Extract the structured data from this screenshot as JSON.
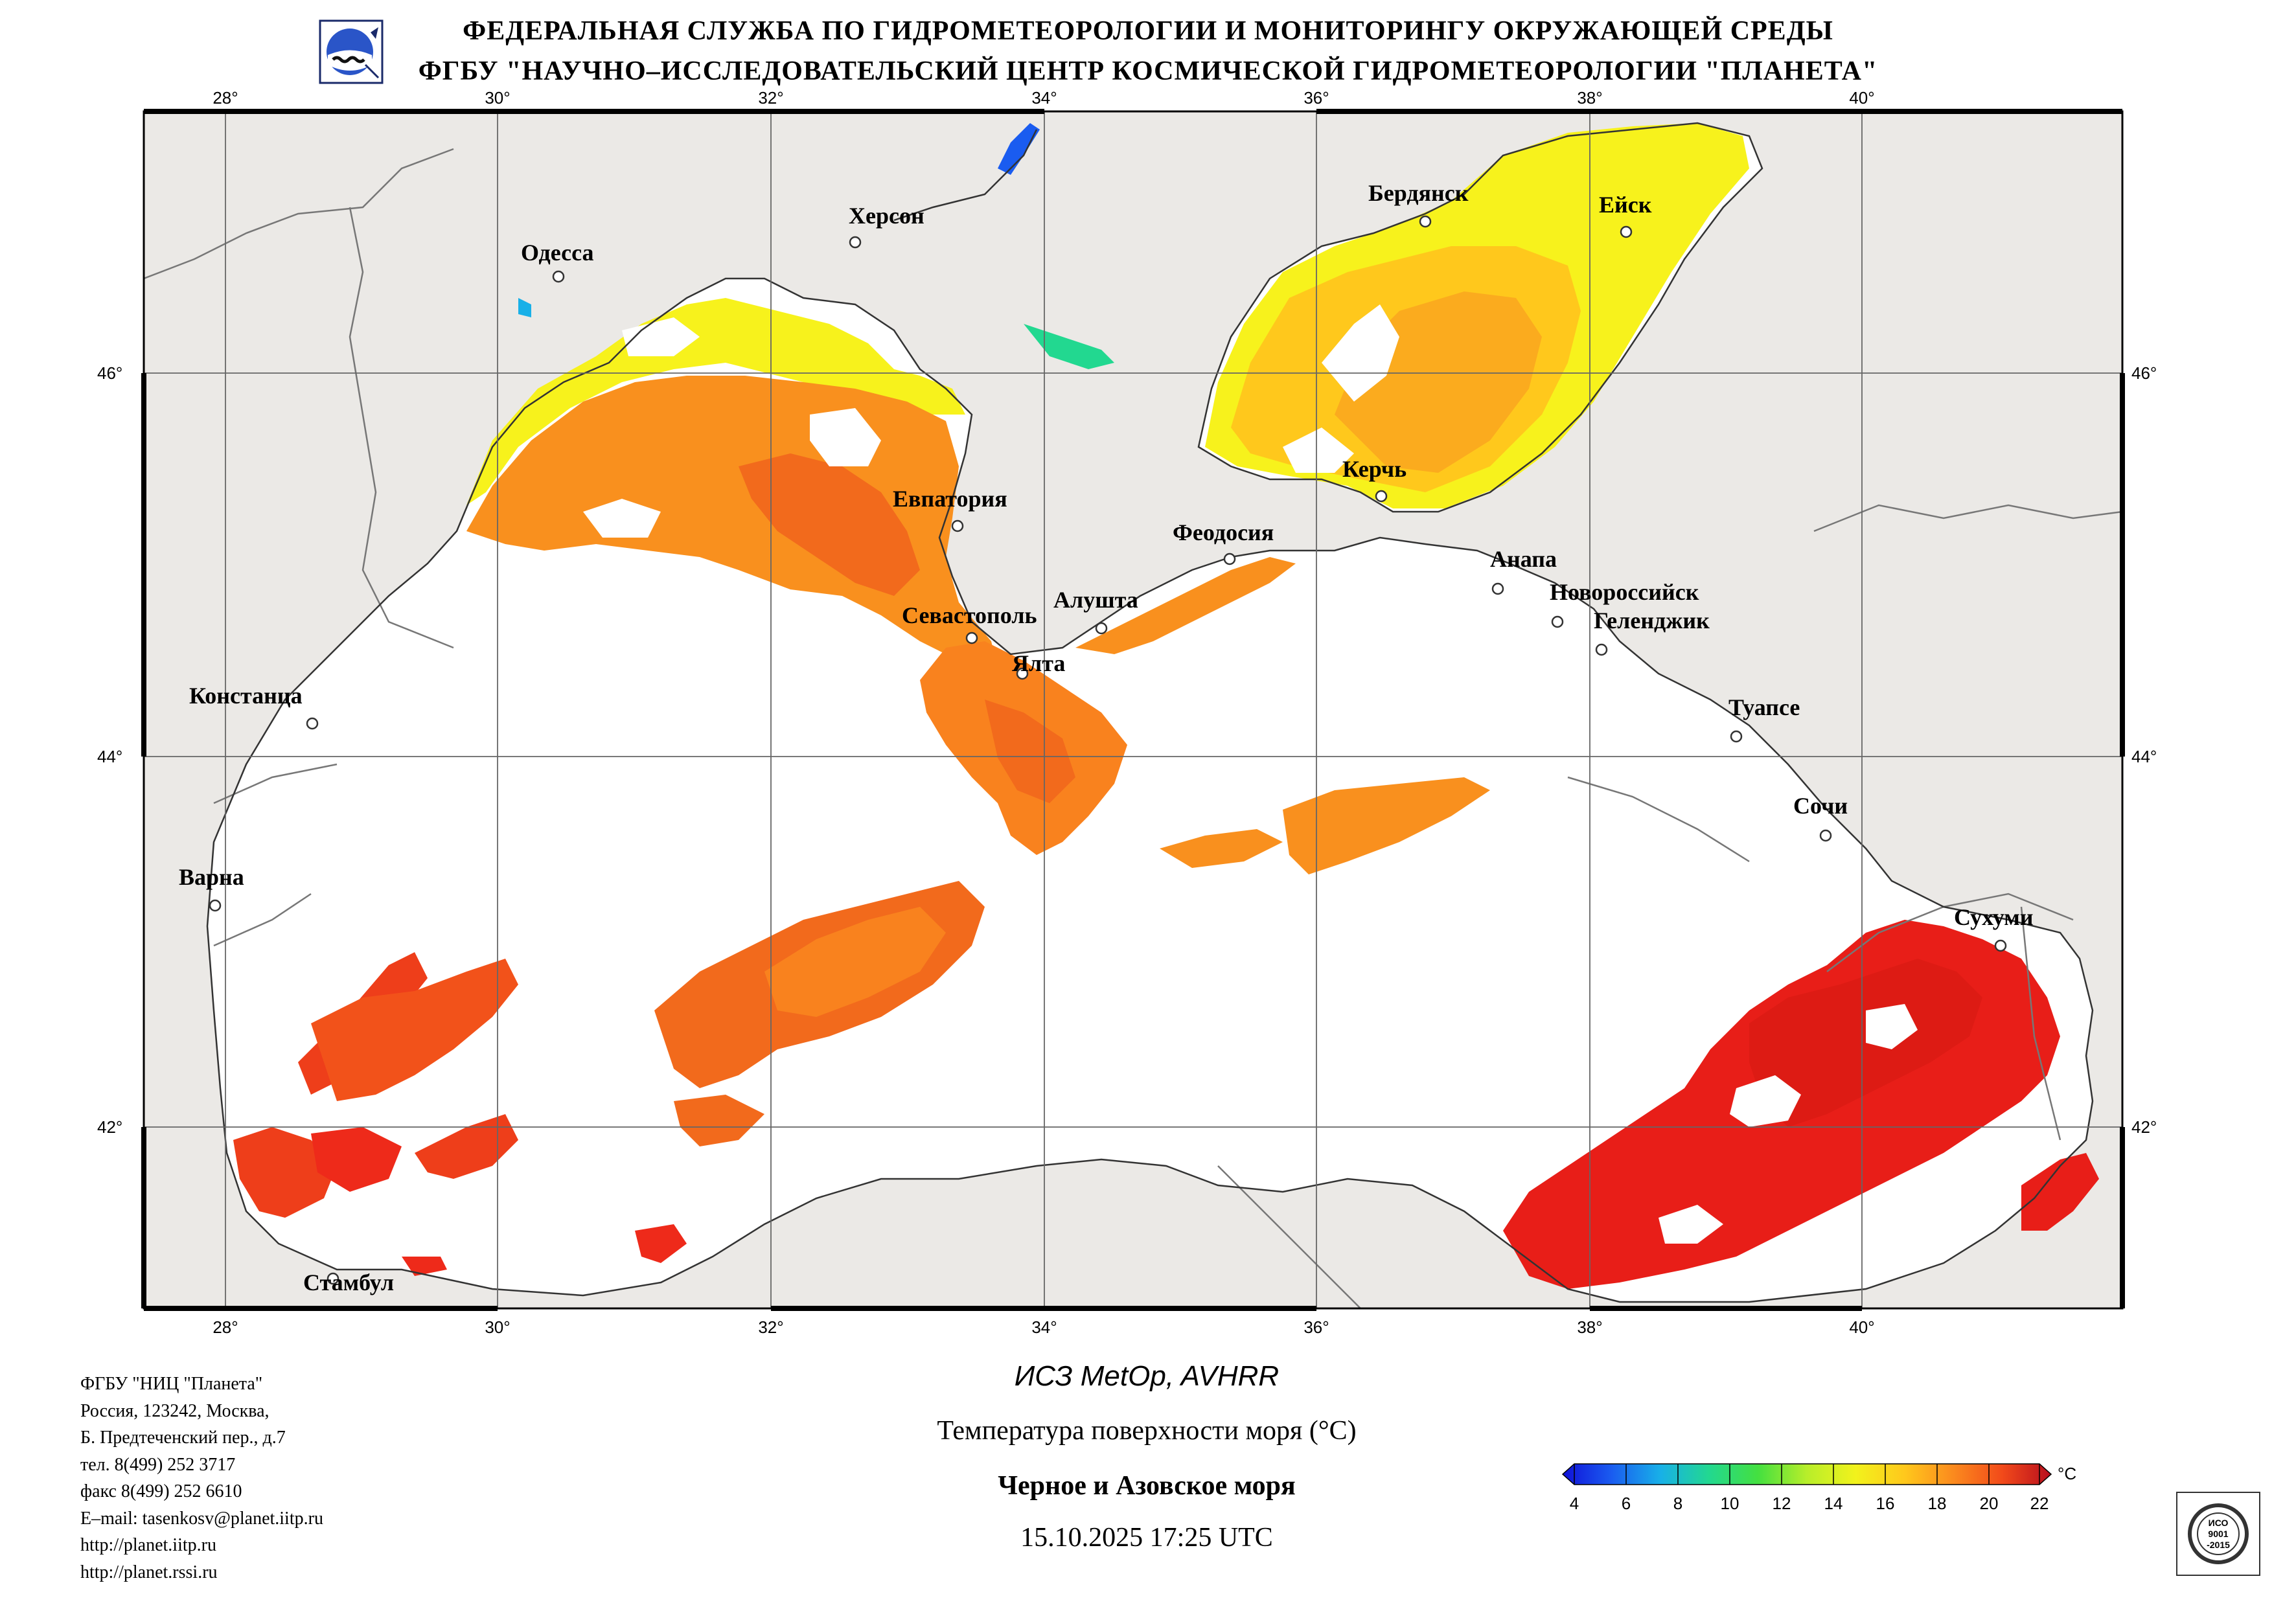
{
  "header": {
    "line1": "ФЕДЕРАЛЬНАЯ СЛУЖБА ПО ГИДРОМЕТЕОРОЛОГИИ И МОНИТОРИНГУ ОКРУЖАЮЩЕЙ СРЕДЫ",
    "line2": "ФГБУ \"НАУЧНО–ИССЛЕДОВАТЕЛЬСКИЙ ЦЕНТР КОСМИЧЕСКОЙ ГИДРОМЕТЕОРОЛОГИИ \"ПЛАНЕТА\""
  },
  "map": {
    "lon_ticks": [
      "28°",
      "30°",
      "32°",
      "34°",
      "36°",
      "38°",
      "40°"
    ],
    "lat_ticks": [
      "46°",
      "44°",
      "42°"
    ],
    "cities": [
      {
        "name": "Одесса"
      },
      {
        "name": "Херсон"
      },
      {
        "name": "Бердянск"
      },
      {
        "name": "Ейск"
      },
      {
        "name": "Керчь"
      },
      {
        "name": "Евпатория"
      },
      {
        "name": "Феодосия"
      },
      {
        "name": "Анапа"
      },
      {
        "name": "Алушта"
      },
      {
        "name": "Новороссийск"
      },
      {
        "name": "Севастополь"
      },
      {
        "name": "Геленджик"
      },
      {
        "name": "Ялта"
      },
      {
        "name": "Констанца"
      },
      {
        "name": "Туапсе"
      },
      {
        "name": "Сочи"
      },
      {
        "name": "Варна"
      },
      {
        "name": "Сухуми"
      },
      {
        "name": "Стамбул"
      }
    ],
    "colors": {
      "land": "#ebe9e6",
      "cloud": "#ffffff",
      "border": "#7a7a7a",
      "frame": "#000000",
      "warm": "#ee2a1a",
      "hot": "#dd1b14",
      "mid": "#f5801e",
      "cool": "#ffd21c",
      "cold": "#f7f21c"
    }
  },
  "contact": {
    "lines": [
      "ФГБУ \"НИЦ \"Планета\"",
      "Россия, 123242, Москва,",
      "Б. Предтеченский пер., д.7",
      "тел. 8(499) 252 3717",
      "факс 8(499) 252 6610",
      "E–mail: tasenkosv@planet.iitp.ru",
      "http://planet.iitp.ru",
      "http://planet.rssi.ru"
    ]
  },
  "caption": {
    "satellite": "ИСЗ MetOp, AVHRR",
    "parameter": "Температура поверхности моря (°C)",
    "region": "Черное и Азовское моря",
    "datetime": "15.10.2025 17:25 UTC"
  },
  "colorbar": {
    "unit": "°C",
    "ticks": [
      "4",
      "6",
      "8",
      "10",
      "12",
      "14",
      "16",
      "18",
      "20",
      "22"
    ],
    "colors": [
      "#1010d8",
      "#1a5cf0",
      "#18b0e8",
      "#22d890",
      "#44e040",
      "#b8ee2a",
      "#f2f21c",
      "#ffc81c",
      "#fb8a1e",
      "#f24a1a",
      "#e21818",
      "#b80e1e"
    ]
  },
  "certificate": {
    "lines": [
      "ИСО",
      "9001",
      "-2015"
    ]
  }
}
